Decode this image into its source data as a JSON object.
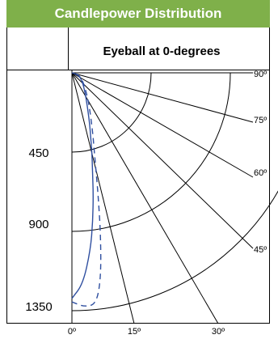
{
  "header": {
    "title": "Candlepower Distribution"
  },
  "colors": {
    "header_bg": "#7fb04a",
    "header_text": "#ffffff",
    "curve": "#2f4fa0",
    "grid": "#000000"
  },
  "chart_data": {
    "type": "polar-candlepower",
    "title": "Candlepower Distribution",
    "subtitle": "Eyeball at 0-degrees",
    "radial_ticks": [
      "450",
      "900",
      "1350"
    ],
    "radial_values": [
      450,
      900,
      1350
    ],
    "angle_ticks_bottom": [
      "0º",
      "15º",
      "30º"
    ],
    "angle_ticks_right": [
      "90º",
      "75º",
      "60º",
      "45º"
    ],
    "angle_values": [
      0,
      15,
      30,
      45,
      60,
      75,
      90
    ],
    "series": [
      {
        "style": "solid",
        "points": [
          [
            0,
            1280
          ],
          [
            3,
            1200
          ],
          [
            6,
            1010
          ],
          [
            8,
            850
          ],
          [
            10,
            700
          ],
          [
            12,
            560
          ],
          [
            14,
            470
          ],
          [
            16,
            390
          ],
          [
            20,
            290
          ],
          [
            30,
            160
          ],
          [
            45,
            90
          ],
          [
            60,
            55
          ],
          [
            75,
            30
          ],
          [
            90,
            0
          ]
        ]
      },
      {
        "style": "dashed",
        "points": [
          [
            0,
            1300
          ],
          [
            3,
            1330
          ],
          [
            6,
            1320
          ],
          [
            8,
            1180
          ],
          [
            10,
            940
          ],
          [
            12,
            720
          ],
          [
            14,
            560
          ],
          [
            16,
            460
          ],
          [
            20,
            340
          ],
          [
            30,
            190
          ],
          [
            45,
            100
          ],
          [
            60,
            60
          ],
          [
            75,
            35
          ],
          [
            90,
            0
          ]
        ]
      }
    ]
  }
}
